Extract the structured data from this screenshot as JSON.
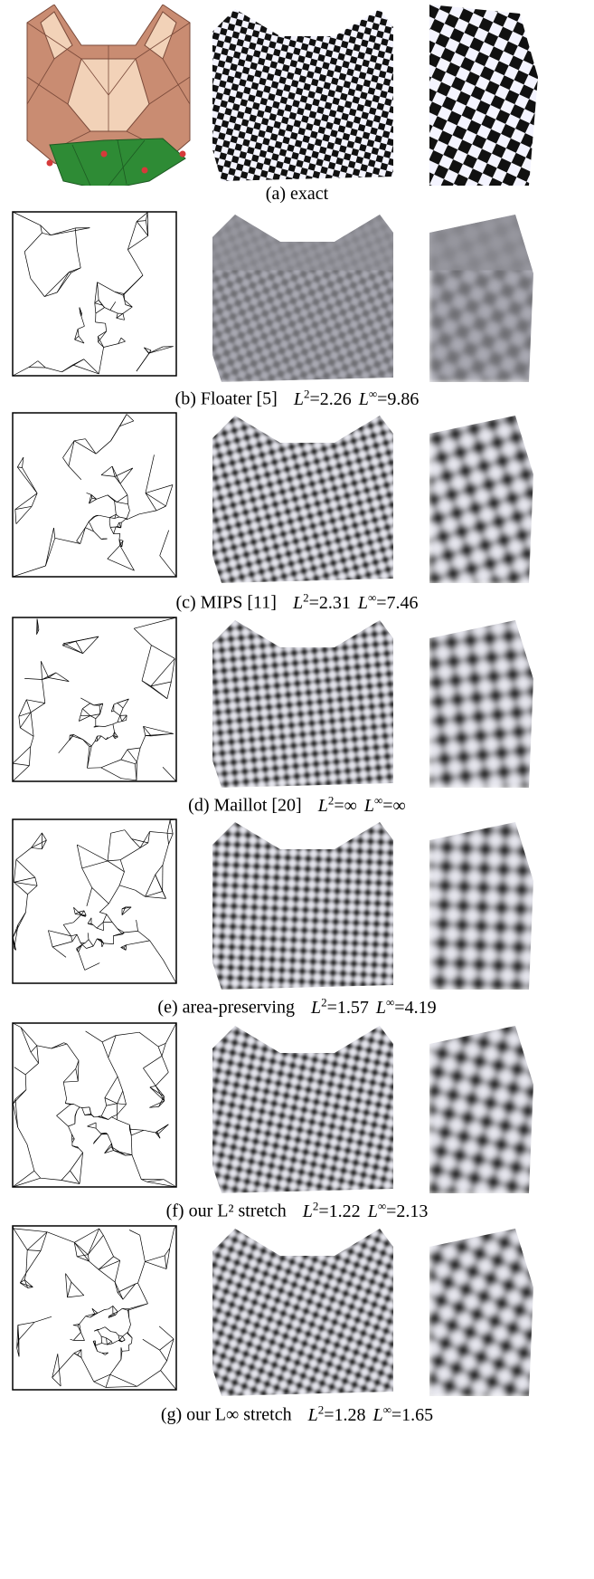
{
  "figure": {
    "rows": [
      {
        "id": "a",
        "label": "(a) exact",
        "l2_label": "",
        "l2": "",
        "linf_label": "",
        "linf": ""
      },
      {
        "id": "b",
        "label": "(b) Floater [5]",
        "l2_label": "L",
        "l2": "=2.26",
        "linf_label": "L",
        "linf": "=9.86"
      },
      {
        "id": "c",
        "label": "(c) MIPS [11]",
        "l2_label": "L",
        "l2": "=2.31",
        "linf_label": "L",
        "linf": "=7.46"
      },
      {
        "id": "d",
        "label": "(d) Maillot [20]",
        "l2_label": "L",
        "l2": "=∞",
        "linf_label": "L",
        "linf": "=∞"
      },
      {
        "id": "e",
        "label": "(e) area-preserving",
        "l2_label": "L",
        "l2": "=1.57",
        "linf_label": "L",
        "linf": "=4.19"
      },
      {
        "id": "f",
        "label": "(f) our L² stretch",
        "l2_label": "L",
        "l2": "=1.22",
        "linf_label": "L",
        "linf": "=2.13"
      },
      {
        "id": "g",
        "label": "(g) our L∞ stretch",
        "l2_label": "L",
        "l2": "=1.28",
        "linf_label": "L",
        "linf": "=1.65"
      }
    ],
    "superscripts": {
      "two": "2",
      "inf": "∞"
    },
    "colors": {
      "mesh_face": "#c98c72",
      "mesh_highlight": "#f2d2b8",
      "boundary_green": "#2e8b35",
      "boundary_point": "#d63a3a",
      "checker_dark": "#111111",
      "checker_light": "#f4f4ff",
      "blur_dark": "#3a3a3a",
      "blur_light": "#d8d8e0"
    }
  }
}
